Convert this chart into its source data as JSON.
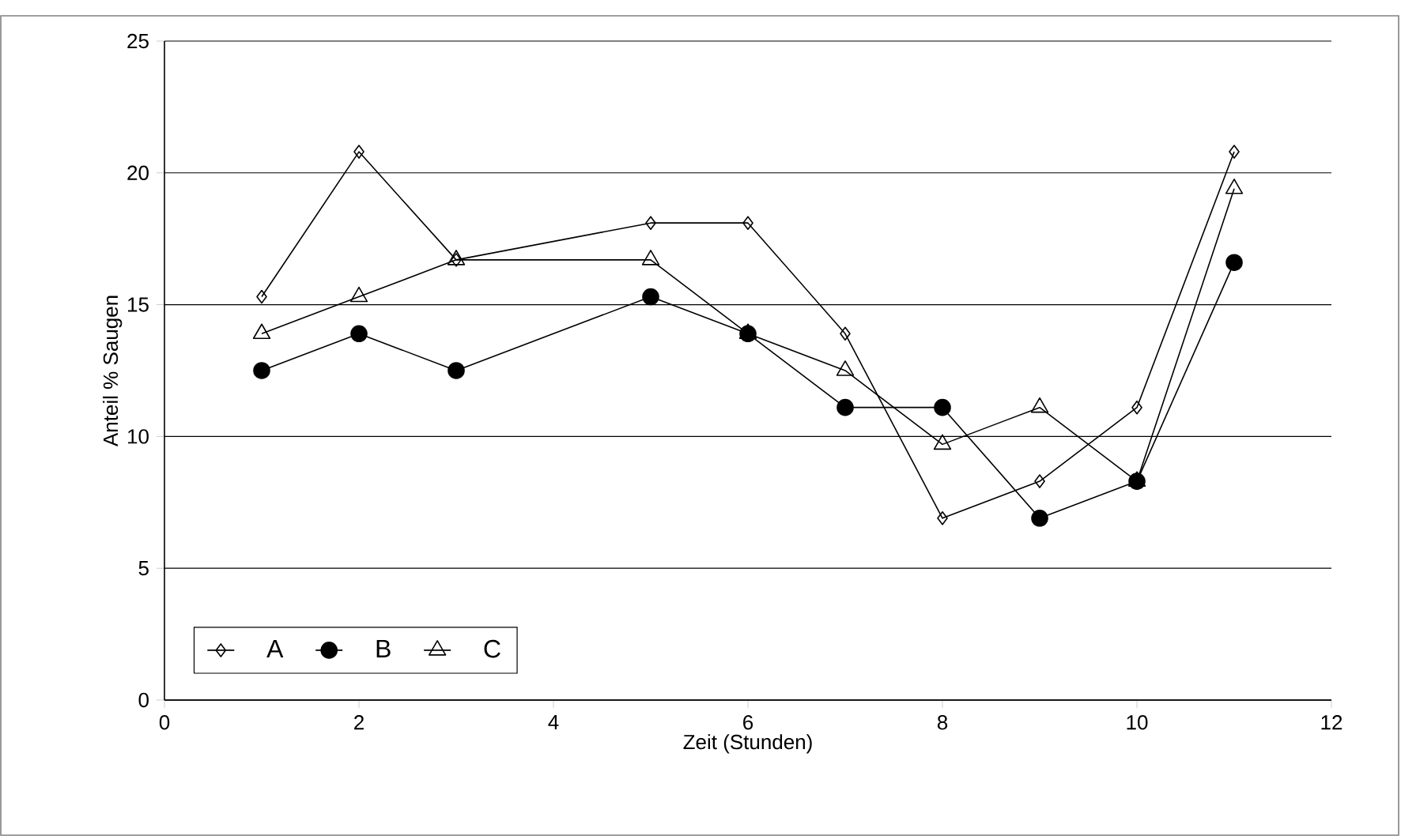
{
  "chart_data": {
    "type": "line",
    "xlabel": "Zeit (Stunden)",
    "ylabel": "Anteil  % Saugen",
    "x": [
      1,
      2,
      3,
      5,
      6,
      7,
      8,
      9,
      10,
      11
    ],
    "series": [
      {
        "name": "A",
        "color": "#000000",
        "marker": "diamond",
        "values": [
          15.3,
          20.8,
          16.7,
          18.1,
          18.1,
          13.9,
          6.9,
          8.3,
          11.1,
          20.8
        ]
      },
      {
        "name": "B",
        "color": "#000000",
        "marker": "circle",
        "values": [
          12.5,
          13.9,
          12.5,
          15.3,
          13.9,
          11.1,
          11.1,
          6.9,
          8.3,
          16.6
        ]
      },
      {
        "name": "C",
        "color": "#000000",
        "marker": "triangle",
        "values": [
          13.9,
          15.3,
          16.7,
          16.7,
          13.9,
          12.5,
          9.7,
          11.1,
          8.3,
          19.4
        ]
      }
    ],
    "xlim": [
      0,
      12
    ],
    "ylim": [
      0,
      25
    ],
    "xticks": [
      0,
      2,
      4,
      6,
      8,
      10,
      12
    ],
    "yticks": [
      0,
      5,
      10,
      15,
      20,
      25
    ],
    "grid": "y",
    "legend": "bottom left",
    "line_style": "solid"
  }
}
